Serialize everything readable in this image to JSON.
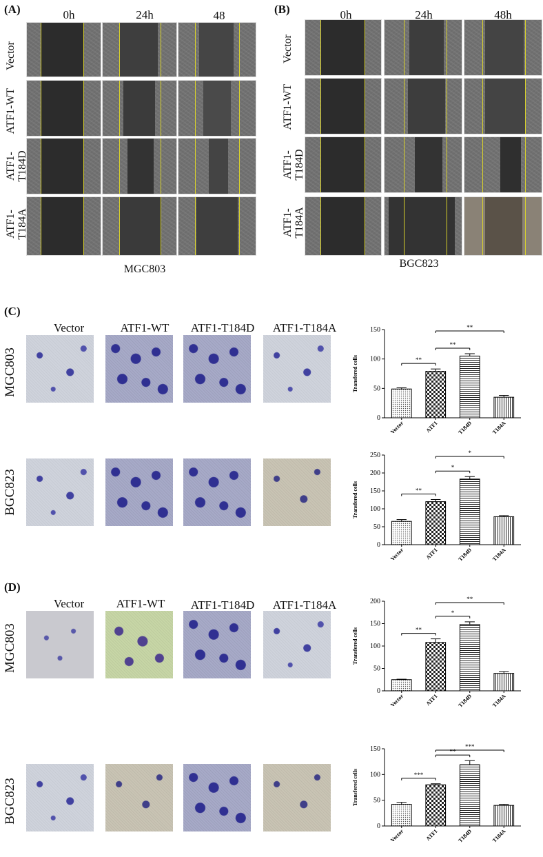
{
  "panels": {
    "A": {
      "label": "(A)",
      "columns": [
        "0h",
        "24h",
        "48\nh"
      ],
      "rows": [
        "Vector",
        "ATF1-WT",
        "ATF1-\nT184D",
        "ATF1-\nT184A"
      ],
      "caption": "MGC803"
    },
    "B": {
      "label": "(B)",
      "columns": [
        "0h",
        "24h",
        "48h"
      ],
      "rows": [
        "Vector",
        "ATF1-WT",
        "ATF1-\nT184D",
        "ATF1-\nT184A"
      ],
      "caption": "BGC823"
    },
    "C": {
      "label": "(C)",
      "columns": [
        "Vector",
        "ATF1-WT",
        "ATF1-T184D",
        "ATF1-T184A"
      ],
      "rows": [
        "MGC803",
        "BGC823"
      ]
    },
    "D": {
      "label": "(D)",
      "columns": [
        "Vector",
        "ATF1-WT",
        "ATF1-T184D",
        "ATF1-T184A"
      ],
      "rows": [
        "MGC803",
        "BGC823"
      ]
    }
  },
  "chart_data": [
    {
      "id": "C-MGC803",
      "type": "bar",
      "categories": [
        "Vector",
        "ATF1",
        "T184D",
        "T184A"
      ],
      "values": [
        49,
        79,
        105,
        35
      ],
      "errors": [
        2,
        4,
        4,
        3
      ],
      "ylabel": "Transfered cells",
      "ylim": [
        0,
        150
      ],
      "yticks": [
        0,
        50,
        100,
        150
      ],
      "patterns": [
        "dots",
        "checker",
        "hstripes",
        "vstripes"
      ],
      "significance": [
        {
          "from": 0,
          "to": 1,
          "label": "**"
        },
        {
          "from": 1,
          "to": 2,
          "label": "**"
        },
        {
          "from": 1,
          "to": 3,
          "label": "**"
        }
      ]
    },
    {
      "id": "C-BGC823",
      "type": "bar",
      "categories": [
        "Vector",
        "ATF1",
        "T184D",
        "T184A"
      ],
      "values": [
        65,
        120,
        183,
        78
      ],
      "errors": [
        5,
        6,
        7,
        3
      ],
      "ylabel": "Transfered cells",
      "ylim": [
        0,
        250
      ],
      "yticks": [
        0,
        50,
        100,
        150,
        200,
        250
      ],
      "patterns": [
        "dots",
        "checker",
        "hstripes",
        "vstripes"
      ],
      "significance": [
        {
          "from": 0,
          "to": 1,
          "label": "**"
        },
        {
          "from": 1,
          "to": 2,
          "label": "*"
        },
        {
          "from": 1,
          "to": 3,
          "label": "*"
        }
      ]
    },
    {
      "id": "D-MGC803",
      "type": "bar",
      "categories": [
        "Vector",
        "ATF1",
        "T184D",
        "T184A"
      ],
      "values": [
        25,
        108,
        148,
        39
      ],
      "errors": [
        1,
        8,
        6,
        4
      ],
      "ylabel": "Transfered cells",
      "ylim": [
        0,
        200
      ],
      "yticks": [
        0,
        50,
        100,
        150,
        200
      ],
      "patterns": [
        "dots",
        "checker",
        "hstripes",
        "vstripes"
      ],
      "significance": [
        {
          "from": 0,
          "to": 1,
          "label": "**"
        },
        {
          "from": 1,
          "to": 2,
          "label": "*"
        },
        {
          "from": 1,
          "to": 3,
          "label": "**"
        }
      ]
    },
    {
      "id": "D-BGC823",
      "type": "bar",
      "categories": [
        "Vector",
        "ATF1",
        "T184D",
        "T184A"
      ],
      "values": [
        42,
        80,
        119,
        40
      ],
      "errors": [
        4,
        2,
        8,
        2
      ],
      "ylabel": "Transfered cells",
      "ylim": [
        0,
        150
      ],
      "yticks": [
        0,
        50,
        100,
        150
      ],
      "patterns": [
        "dots",
        "checker",
        "hstripes",
        "vstripes"
      ],
      "significance": [
        {
          "from": 0,
          "to": 1,
          "label": "***"
        },
        {
          "from": 1,
          "to": 2,
          "label": "**"
        },
        {
          "from": 1,
          "to": 3,
          "label": "***"
        }
      ]
    }
  ]
}
